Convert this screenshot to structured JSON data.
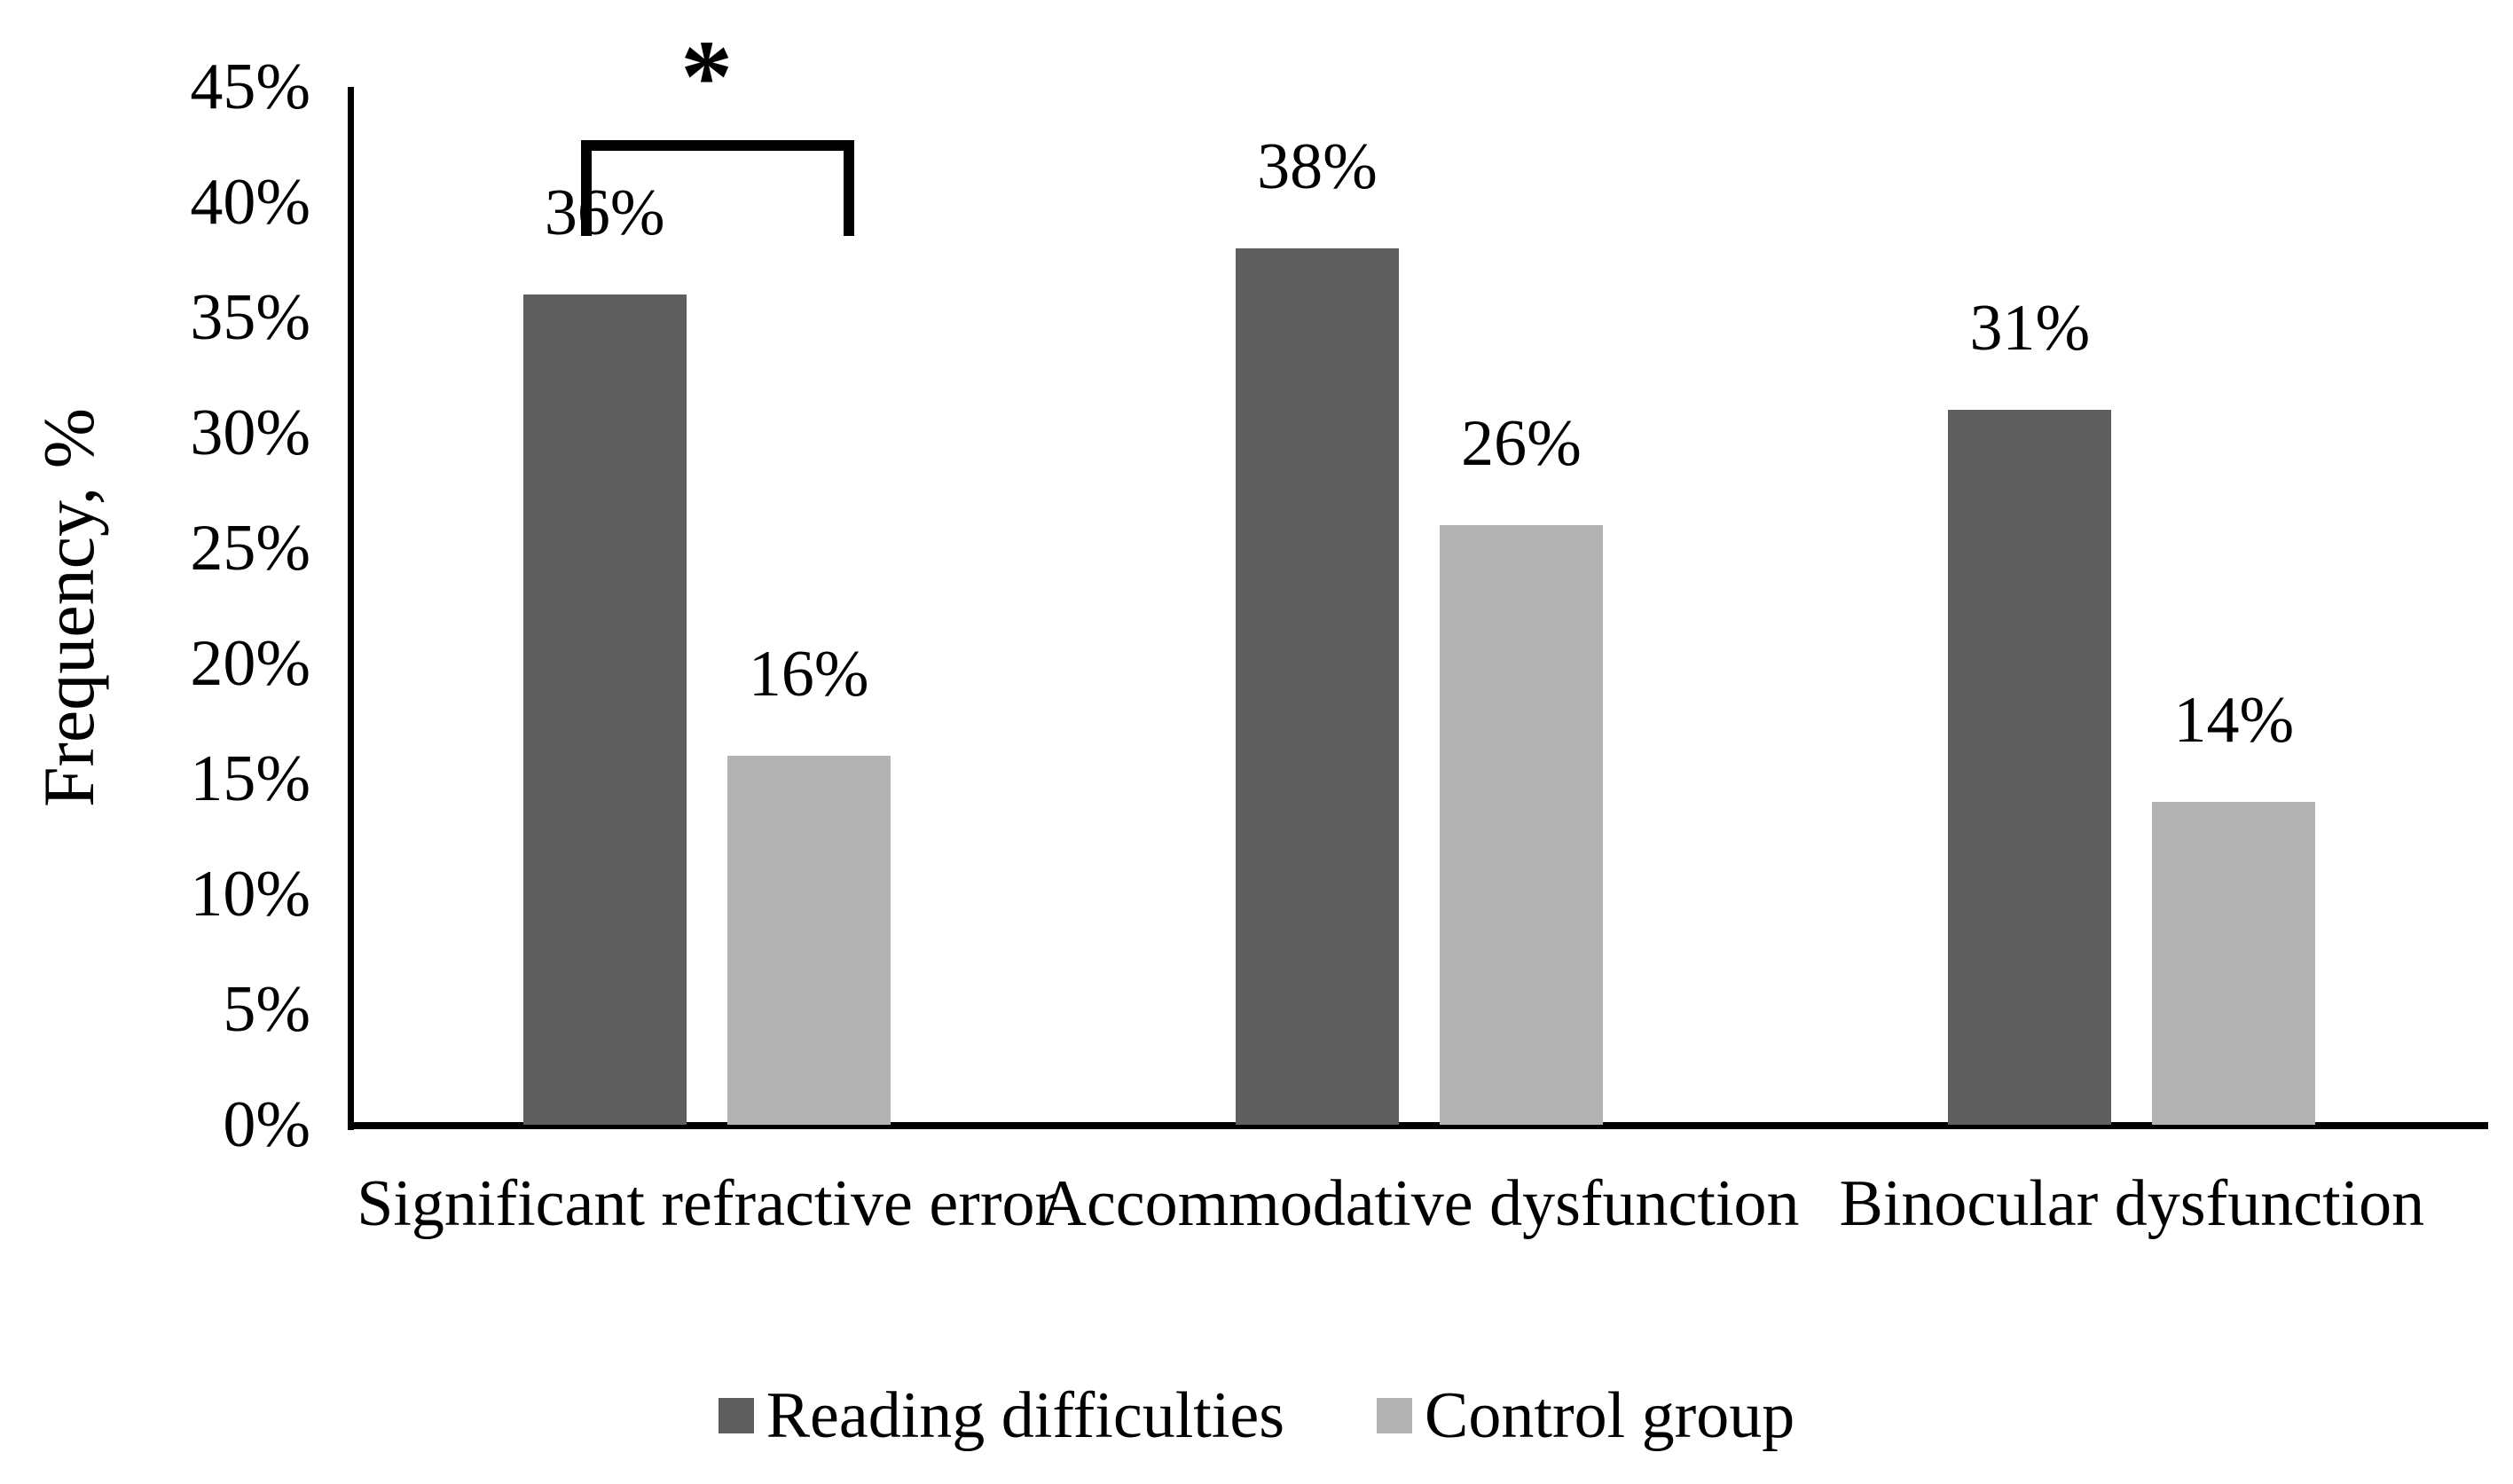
{
  "figure": {
    "background_color": "#FFFFFF",
    "text_color": "#000000",
    "axis_color": "#000000"
  },
  "chart_data": {
    "type": "bar",
    "title": "",
    "xlabel": "",
    "ylabel": "Frequency, %",
    "categories": [
      "Significant refractive error",
      "Accommodative dysfunction",
      "Binocular dysfunction"
    ],
    "series": [
      {
        "name": "Reading difficulties",
        "color": "#5E5E5E",
        "values": [
          36,
          38,
          31
        ]
      },
      {
        "name": "Control group",
        "color": "#B3B3B3",
        "values": [
          16,
          26,
          14
        ]
      }
    ],
    "data_labels": [
      [
        "36%",
        "38%",
        "31%"
      ],
      [
        "16%",
        "26%",
        "14%"
      ]
    ],
    "value_suffix": "%",
    "ylim": [
      0,
      45
    ],
    "y_ticks": [
      {
        "value": 0,
        "label": "0%"
      },
      {
        "value": 5,
        "label": "5%"
      },
      {
        "value": 10,
        "label": "10%"
      },
      {
        "value": 15,
        "label": "15%"
      },
      {
        "value": 20,
        "label": "20%"
      },
      {
        "value": 25,
        "label": "25%"
      },
      {
        "value": 30,
        "label": "30%"
      },
      {
        "value": 35,
        "label": "35%"
      },
      {
        "value": 40,
        "label": "40%"
      },
      {
        "value": 45,
        "label": "45%"
      }
    ],
    "grid": false,
    "legend_position": "bottom",
    "annotation": {
      "symbol": "*",
      "type": "significance-bracket",
      "category": "Significant refractive error",
      "between_series": [
        "Reading difficulties",
        "Control group"
      ]
    }
  }
}
